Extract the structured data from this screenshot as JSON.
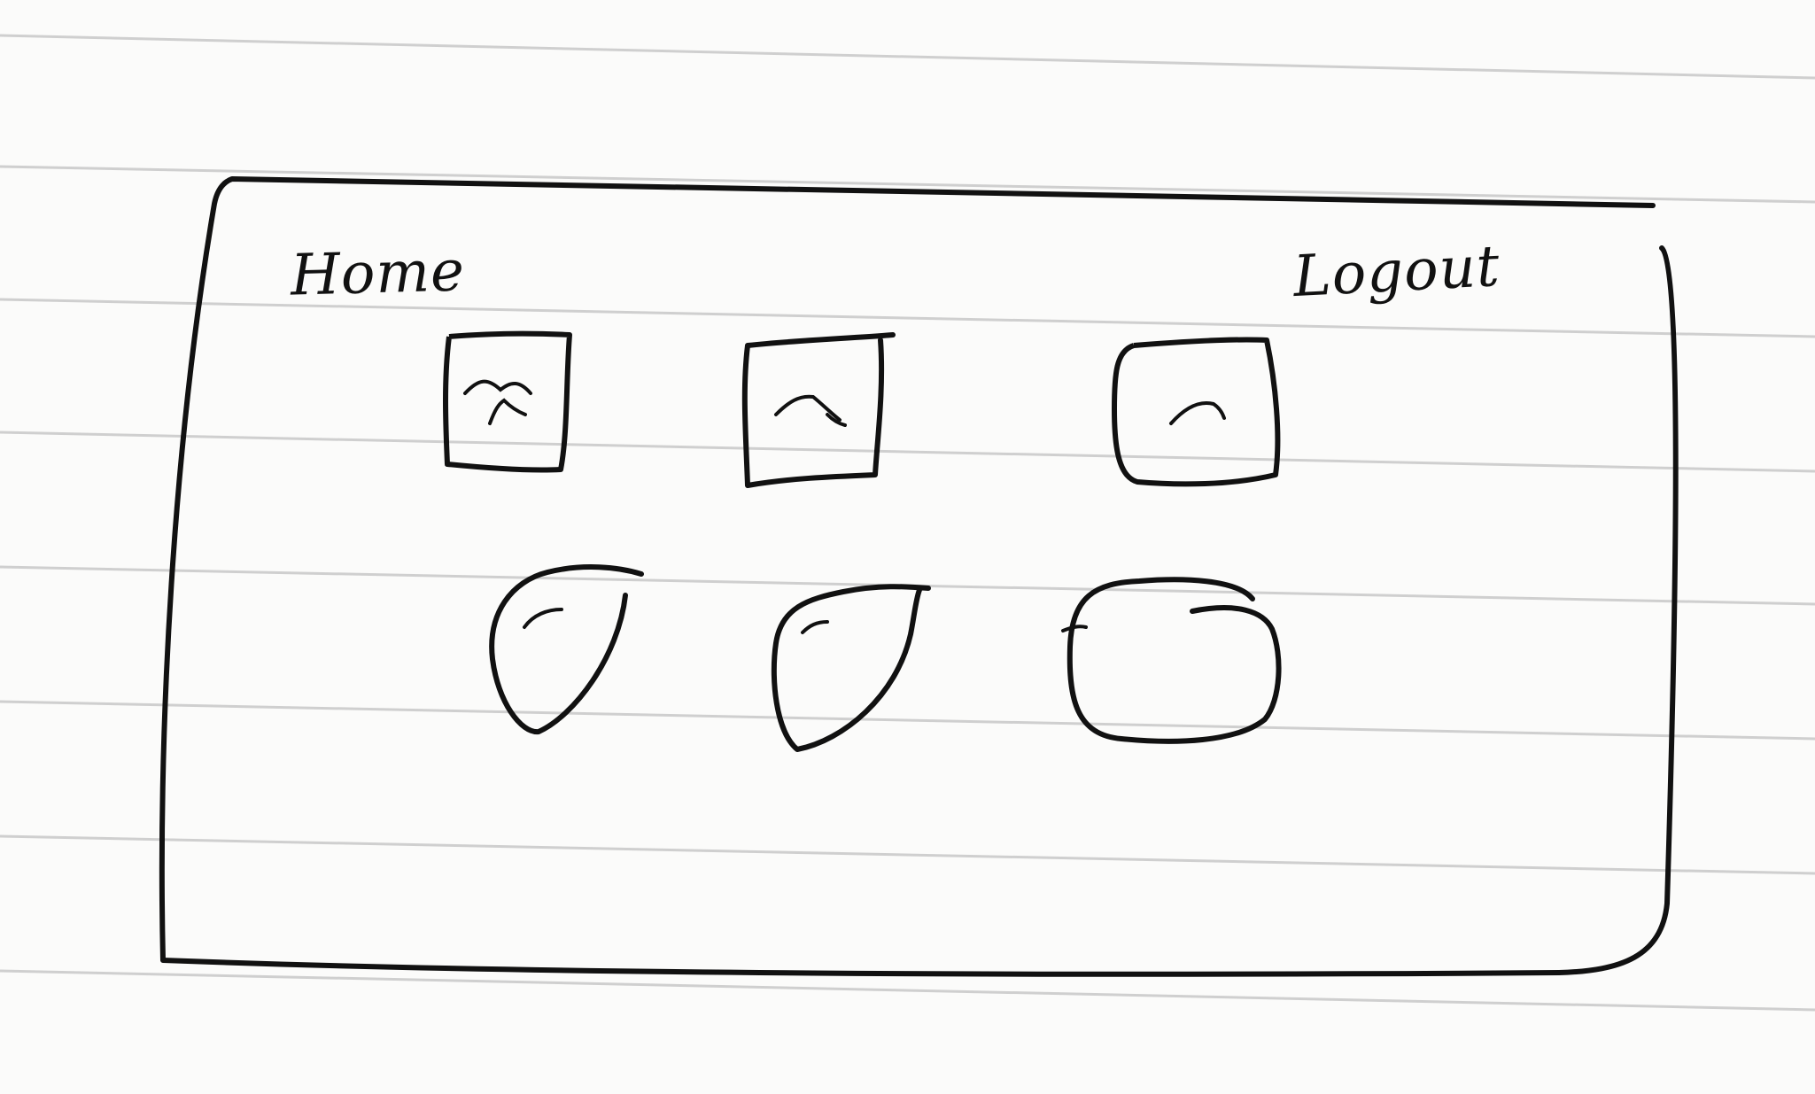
{
  "nav": {
    "home_label": "Home",
    "logout_label": "Logout"
  },
  "tiles": [
    {
      "shape": "square",
      "icon": "mountain-icon"
    },
    {
      "shape": "square",
      "icon": "mountain-icon"
    },
    {
      "shape": "square",
      "icon": "mountain-icon"
    },
    {
      "shape": "drop",
      "icon": "curve-icon"
    },
    {
      "shape": "drop",
      "icon": "curve-icon"
    },
    {
      "shape": "rounded-square",
      "icon": "curve-icon"
    }
  ],
  "colors": {
    "ink": "#111111",
    "paper": "#fbfbfa",
    "rule": "#cfcfcf"
  }
}
